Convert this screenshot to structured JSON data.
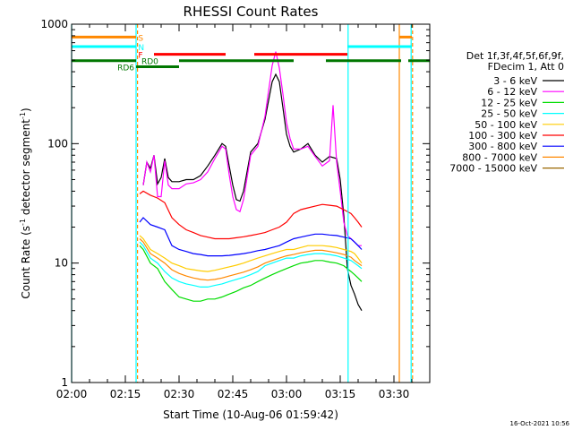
{
  "chart_data": {
    "type": "line",
    "title": "RHESSI Count Rates",
    "xlabel": "Start Time (10-Aug-06 01:59:42)",
    "ylabel_main": "Count Rate (s",
    "ylabel_sup1": "-1",
    "ylabel_mid": " detector segment",
    "ylabel_sup2": "-1",
    "ylabel_end": ")",
    "x_unit": "minutes after 02:00",
    "xlim": [
      0,
      100
    ],
    "ylim": [
      1,
      1000
    ],
    "yscale": "log",
    "x_ticks": [
      {
        "value": 0,
        "label": "02:00"
      },
      {
        "value": 15,
        "label": "02:15"
      },
      {
        "value": 30,
        "label": "02:30"
      },
      {
        "value": 45,
        "label": "02:45"
      },
      {
        "value": 60,
        "label": "03:00"
      },
      {
        "value": 75,
        "label": "03:15"
      },
      {
        "value": 90,
        "label": "03:30"
      }
    ],
    "y_ticks": [
      {
        "value": 1,
        "label": "1"
      },
      {
        "value": 10,
        "label": "10"
      },
      {
        "value": 100,
        "label": "100"
      },
      {
        "value": 1000,
        "label": "1000"
      }
    ],
    "legend_header": [
      "Det 1f,3f,4f,5f,6f,9f,",
      "FDecim 1, Att 0"
    ],
    "series": [
      {
        "name": "3 - 6 keV",
        "color": "#000000",
        "x": [
          20,
          21,
          22,
          23,
          24,
          25,
          26,
          27,
          28,
          30,
          32,
          34,
          36,
          38,
          40,
          42,
          43,
          44,
          45,
          46,
          47,
          48,
          50,
          52,
          54,
          56,
          57,
          58,
          59,
          60,
          61,
          62,
          64,
          66,
          68,
          70,
          72,
          74,
          75,
          76,
          77,
          78,
          79,
          80,
          81
        ],
        "y": [
          45,
          70,
          62,
          80,
          46,
          52,
          75,
          52,
          48,
          48,
          50,
          50,
          54,
          65,
          80,
          100,
          95,
          65,
          45,
          34,
          33,
          40,
          85,
          100,
          160,
          330,
          380,
          330,
          200,
          120,
          95,
          85,
          90,
          100,
          80,
          70,
          78,
          75,
          50,
          25,
          9,
          6.5,
          5.5,
          4.5,
          4
        ]
      },
      {
        "name": "6 - 12 keV",
        "color": "#ff00ff",
        "x": [
          20,
          21,
          22,
          23,
          24,
          25,
          26,
          27,
          28,
          30,
          32,
          34,
          36,
          38,
          40,
          42,
          43,
          44,
          45,
          46,
          47,
          48,
          50,
          52,
          54,
          56,
          57,
          58,
          59,
          60,
          61,
          62,
          64,
          66,
          68,
          70,
          72,
          73,
          74,
          75,
          76,
          77,
          78,
          79,
          80,
          81
        ],
        "y": [
          45,
          70,
          58,
          80,
          36,
          36,
          72,
          45,
          42,
          42,
          46,
          47,
          50,
          58,
          75,
          95,
          90,
          55,
          36,
          28,
          27,
          34,
          80,
          95,
          170,
          450,
          590,
          430,
          260,
          150,
          110,
          90,
          90,
          95,
          78,
          65,
          72,
          210,
          70,
          40,
          22,
          17,
          16,
          15,
          14,
          14
        ]
      },
      {
        "name": "12 - 25 keV",
        "color": "#00dd00",
        "x": [
          19,
          20,
          22,
          24,
          26,
          28,
          30,
          32,
          34,
          36,
          38,
          40,
          42,
          44,
          46,
          48,
          50,
          52,
          54,
          56,
          58,
          60,
          62,
          64,
          66,
          68,
          70,
          72,
          74,
          76,
          78,
          79,
          80,
          81
        ],
        "y": [
          14,
          13,
          10,
          9,
          7,
          6,
          5.2,
          5,
          4.8,
          4.8,
          5,
          5,
          5.2,
          5.5,
          5.8,
          6.2,
          6.5,
          7,
          7.5,
          8,
          8.5,
          9,
          9.5,
          10,
          10.2,
          10.5,
          10.5,
          10.2,
          10,
          9.5,
          8.5,
          8,
          7.5,
          7
        ]
      },
      {
        "name": "25 - 50 keV",
        "color": "#00ffff",
        "x": [
          19,
          20,
          22,
          24,
          26,
          28,
          30,
          32,
          34,
          36,
          38,
          40,
          42,
          44,
          46,
          48,
          50,
          52,
          54,
          56,
          58,
          60,
          62,
          64,
          66,
          68,
          70,
          72,
          74,
          76,
          78,
          79,
          80,
          81
        ],
        "y": [
          15,
          14,
          11,
          10,
          8.5,
          7.5,
          7,
          6.7,
          6.5,
          6.3,
          6.3,
          6.5,
          6.7,
          7,
          7.3,
          7.6,
          8,
          8.5,
          9.5,
          10,
          10.5,
          11,
          11,
          11.5,
          11.8,
          12,
          12,
          11.8,
          11.5,
          11,
          10.5,
          10,
          9.5,
          9
        ]
      },
      {
        "name": "50 - 100 keV",
        "color": "#ffcc00",
        "x": [
          19,
          20,
          22,
          24,
          26,
          28,
          30,
          32,
          34,
          36,
          38,
          40,
          42,
          44,
          46,
          48,
          50,
          52,
          54,
          56,
          58,
          60,
          62,
          64,
          66,
          68,
          70,
          72,
          74,
          76,
          78,
          79,
          80,
          81
        ],
        "y": [
          17,
          16,
          13,
          12,
          11,
          10,
          9.5,
          9,
          8.8,
          8.6,
          8.5,
          8.7,
          9,
          9.3,
          9.6,
          10,
          10.5,
          11,
          11.5,
          12,
          12.5,
          13,
          13,
          13.5,
          14,
          14,
          14,
          13.8,
          13.5,
          13,
          12.5,
          12,
          11,
          10
        ]
      },
      {
        "name": "100 - 300 keV",
        "color": "#ff0000",
        "x": [
          19,
          20,
          22,
          24,
          26,
          28,
          30,
          32,
          34,
          36,
          38,
          40,
          42,
          44,
          46,
          48,
          50,
          52,
          54,
          56,
          58,
          60,
          62,
          64,
          66,
          68,
          70,
          72,
          74,
          76,
          78,
          79,
          80,
          81
        ],
        "y": [
          38,
          40,
          37,
          35,
          32,
          24,
          21,
          19,
          18,
          17,
          16.5,
          16,
          16,
          16,
          16.3,
          16.6,
          17,
          17.5,
          18,
          19,
          20,
          22,
          26,
          28,
          29,
          30,
          31,
          30.5,
          30,
          28,
          26,
          24,
          22,
          20
        ]
      },
      {
        "name": "300 - 800 keV",
        "color": "#0000ff",
        "x": [
          19,
          20,
          22,
          24,
          26,
          28,
          30,
          32,
          34,
          36,
          38,
          40,
          42,
          44,
          46,
          48,
          50,
          52,
          54,
          56,
          58,
          60,
          62,
          64,
          66,
          68,
          70,
          72,
          74,
          76,
          78,
          79,
          80,
          81
        ],
        "y": [
          22,
          24,
          21,
          20,
          19,
          14,
          13,
          12.5,
          12,
          11.8,
          11.5,
          11.5,
          11.5,
          11.6,
          11.8,
          12,
          12.3,
          12.7,
          13,
          13.5,
          14,
          15,
          16,
          16.5,
          17,
          17.5,
          17.5,
          17.2,
          17,
          16.5,
          16,
          15,
          14,
          13
        ]
      },
      {
        "name": "800 - 7000 keV",
        "color": "#ff8800",
        "x": [
          19,
          20,
          22,
          24,
          26,
          28,
          30,
          32,
          34,
          36,
          38,
          40,
          42,
          44,
          46,
          48,
          50,
          52,
          54,
          56,
          58,
          60,
          62,
          64,
          66,
          68,
          70,
          72,
          74,
          76,
          78,
          79,
          80,
          81
        ],
        "y": [
          16,
          15,
          12,
          11,
          10,
          8.8,
          8.2,
          7.8,
          7.5,
          7.3,
          7.2,
          7.3,
          7.5,
          7.8,
          8.1,
          8.4,
          8.8,
          9.3,
          10,
          10.5,
          11,
          11.5,
          11.8,
          12.2,
          12.5,
          12.8,
          12.8,
          12.5,
          12.2,
          11.8,
          11.2,
          10.5,
          10,
          9.5
        ]
      },
      {
        "name": "7000 - 15000 keV",
        "color": "#996600",
        "x": [],
        "y": []
      }
    ],
    "attenuator_bars": [
      {
        "label": "S",
        "color": "#ff8800",
        "level": 780,
        "segments": [
          [
            0,
            18
          ],
          [
            91.5,
            95
          ]
        ]
      },
      {
        "label": "N",
        "color": "#00ffff",
        "level": 650,
        "segments": [
          [
            0,
            18
          ],
          [
            77,
            95
          ]
        ]
      },
      {
        "label": "F",
        "color": "#ff0000",
        "level": 560,
        "segments": [
          [
            23,
            43
          ],
          [
            51,
            77
          ]
        ]
      },
      {
        "label": "RD0",
        "color": "#007700",
        "level": 495,
        "segments": [
          [
            0,
            18
          ],
          [
            30,
            62
          ],
          [
            71,
            92
          ],
          [
            94,
            100
          ]
        ]
      },
      {
        "label": "RD6",
        "color": "#007700",
        "level": 440,
        "segments": [
          [
            18,
            30
          ]
        ]
      }
    ],
    "vertical_lines": [
      {
        "x": 0,
        "color": "#00ffff",
        "dashed": false
      },
      {
        "x": 18,
        "color": "#00ffff",
        "dashed": false
      },
      {
        "x": 18.4,
        "color": "#ff8800",
        "dashed": true
      },
      {
        "x": 77.2,
        "color": "#00ffff",
        "dashed": false
      },
      {
        "x": 91.5,
        "color": "#ff8800",
        "dashed": false
      },
      {
        "x": 94.8,
        "color": "#00ffff",
        "dashed": false
      },
      {
        "x": 95.2,
        "color": "#ff8800",
        "dashed": true
      }
    ]
  },
  "footer_timestamp": "16-Oct-2021 10:56"
}
